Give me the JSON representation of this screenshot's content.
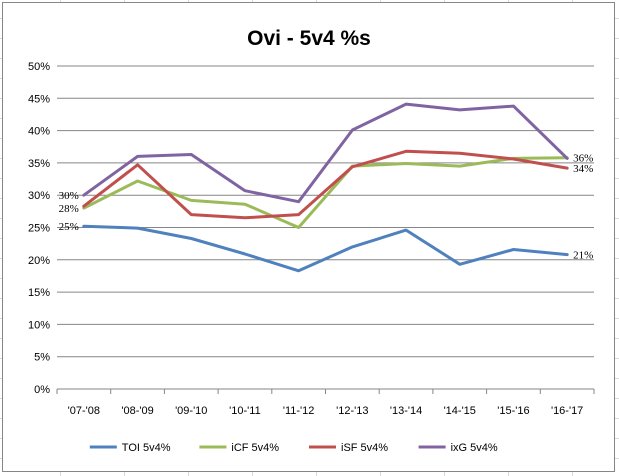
{
  "chart_data": {
    "type": "line",
    "title": "Ovi -  5v4 %s",
    "xlabel": "",
    "ylabel": "",
    "ylim": [
      0,
      50
    ],
    "y_ticks": [
      "0%",
      "5%",
      "10%",
      "15%",
      "20%",
      "25%",
      "30%",
      "35%",
      "40%",
      "45%",
      "50%"
    ],
    "grid": "horizontal",
    "legend_position": "bottom",
    "categories": [
      "'07-'08",
      "'08-'09",
      "'09-'10",
      "'10-'11",
      "'11-'12",
      "'12-'13",
      "'13-'14",
      "'14-'15",
      "'15-'16",
      "'16-'17"
    ],
    "series": [
      {
        "name": "TOI 5v4%",
        "color": "#4f81bd",
        "values": [
          25.2,
          24.9,
          23.3,
          20.9,
          18.3,
          22.0,
          24.6,
          19.3,
          21.6,
          20.8
        ],
        "labels": [
          {
            "index": 0,
            "text": "25%",
            "side": "left"
          },
          {
            "index": 9,
            "text": "21%",
            "side": "right"
          }
        ]
      },
      {
        "name": "iCF 5v4%",
        "color": "#9bbb59",
        "values": [
          28.0,
          32.2,
          29.2,
          28.6,
          25.0,
          34.5,
          34.9,
          34.5,
          35.7,
          35.8
        ],
        "labels": [
          {
            "index": 0,
            "text": "28%",
            "side": "left"
          },
          {
            "index": 9,
            "text": "36%",
            "side": "right"
          }
        ]
      },
      {
        "name": "iSF 5v4%",
        "color": "#c0504d",
        "values": [
          28.3,
          34.7,
          27.0,
          26.5,
          27.0,
          34.4,
          36.8,
          36.5,
          35.6,
          34.2
        ],
        "labels": [
          {
            "index": 9,
            "text": "34%",
            "side": "right"
          }
        ]
      },
      {
        "name": "ixG 5v4%",
        "color": "#8064a2",
        "values": [
          30.0,
          36.0,
          36.3,
          30.7,
          29.0,
          40.1,
          44.1,
          43.2,
          43.8,
          35.7
        ],
        "labels": [
          {
            "index": 0,
            "text": "30%",
            "side": "left"
          }
        ]
      }
    ]
  }
}
